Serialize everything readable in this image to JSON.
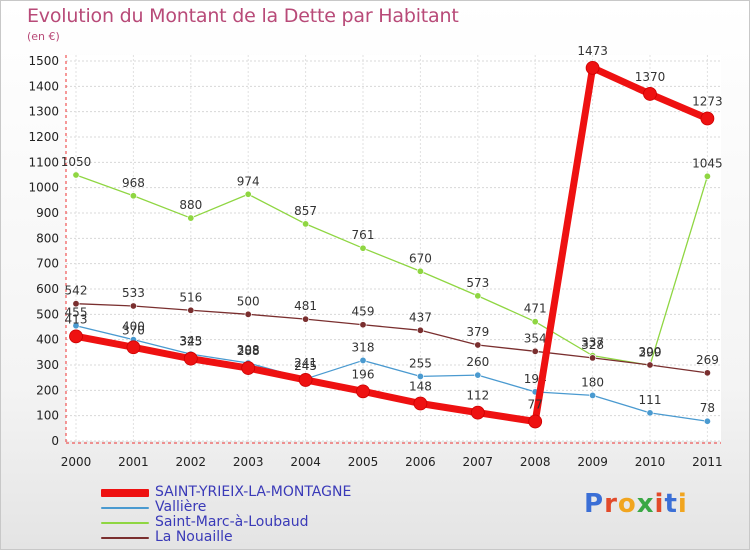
{
  "header": {
    "title": "Evolution du Montant de la Dette par Habitant",
    "unit": "(en €)"
  },
  "logo": {
    "text": "Proxiti"
  },
  "chart_data": {
    "type": "line",
    "title": "Evolution du Montant de la Dette par Habitant",
    "ylabel": "(en €)",
    "xlabel": "",
    "x": [
      2000,
      2001,
      2002,
      2003,
      2004,
      2005,
      2006,
      2007,
      2008,
      2009,
      2010,
      2011
    ],
    "ylim": [
      0,
      1500
    ],
    "yticks": [
      0,
      100,
      200,
      300,
      400,
      500,
      600,
      700,
      800,
      900,
      1000,
      1100,
      1200,
      1300,
      1400,
      1500
    ],
    "grid": true,
    "legend_position": "bottom-left",
    "series": [
      {
        "name": "Saint-Marc-à-Loubaud",
        "color": "#8fd642",
        "values": [
          1050,
          968,
          880,
          974,
          857,
          761,
          670,
          573,
          471,
          337,
          299,
          1045
        ],
        "labels": [
          "1050",
          "968",
          "880",
          "974",
          "857",
          "761",
          "670",
          "573",
          "471",
          "337",
          "299",
          "1045"
        ]
      },
      {
        "name": "La Nouaille",
        "color": "#7a2f2f",
        "values": [
          542,
          533,
          516,
          500,
          481,
          459,
          437,
          379,
          354,
          328,
          300,
          269
        ],
        "labels": [
          "542",
          "533",
          "516",
          "500",
          "481",
          "459",
          "437",
          "379",
          "354",
          "328",
          "300",
          "269"
        ]
      },
      {
        "name": "Vallière",
        "color": "#4a9ad0",
        "values": [
          455,
          400,
          343,
          308,
          245,
          318,
          255,
          260,
          194,
          180,
          111,
          78
        ],
        "labels": [
          "455",
          "400",
          "343",
          "308",
          "245",
          "318",
          "255",
          "260",
          "194",
          "180",
          "111",
          "78"
        ]
      },
      {
        "name": "SAINT-YRIEIX-LA-MONTAGNE",
        "color": "#ee1111",
        "values": [
          413,
          370,
          325,
          288,
          241,
          196,
          148,
          112,
          77,
          1473,
          1370,
          1273
        ],
        "labels": [
          "413",
          "370",
          "325",
          "288",
          "241",
          "196",
          "148",
          "112",
          "77",
          "1473",
          "1370",
          "1273"
        ]
      }
    ],
    "legend": [
      {
        "label": "SAINT-YRIEIX-LA-MONTAGNE",
        "color": "#ee1111",
        "weight": "thick"
      },
      {
        "label": "Vallière",
        "color": "#4a9ad0",
        "weight": "thin"
      },
      {
        "label": "Saint-Marc-à-Loubaud",
        "color": "#8fd642",
        "weight": "thin"
      },
      {
        "label": "La Nouaille",
        "color": "#7a2f2f",
        "weight": "thin"
      }
    ]
  }
}
